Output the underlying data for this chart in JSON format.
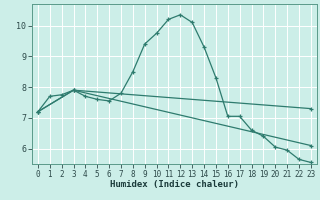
{
  "title": "",
  "xlabel": "Humidex (Indice chaleur)",
  "background_color": "#cceee8",
  "grid_color": "#ffffff",
  "line_color": "#2e7b6e",
  "xlim": [
    -0.5,
    23.5
  ],
  "ylim": [
    5.5,
    10.7
  ],
  "xticks": [
    0,
    1,
    2,
    3,
    4,
    5,
    6,
    7,
    8,
    9,
    10,
    11,
    12,
    13,
    14,
    15,
    16,
    17,
    18,
    19,
    20,
    21,
    22,
    23
  ],
  "yticks": [
    6,
    7,
    8,
    9,
    10
  ],
  "series": [
    {
      "x": [
        0,
        1,
        2,
        3,
        4,
        5,
        6,
        7,
        8,
        9,
        10,
        11,
        12,
        13,
        14,
        15,
        16,
        17,
        18,
        19,
        20,
        21,
        22,
        23
      ],
      "y": [
        7.2,
        7.7,
        7.75,
        7.9,
        7.7,
        7.6,
        7.55,
        7.8,
        8.5,
        9.4,
        9.75,
        10.2,
        10.35,
        10.1,
        9.3,
        8.3,
        7.05,
        7.05,
        6.6,
        6.4,
        6.05,
        5.95,
        5.65,
        5.55
      ]
    },
    {
      "x": [
        0,
        3,
        23
      ],
      "y": [
        7.2,
        7.9,
        7.3
      ]
    },
    {
      "x": [
        0,
        3,
        23
      ],
      "y": [
        7.2,
        7.9,
        6.1
      ]
    }
  ]
}
